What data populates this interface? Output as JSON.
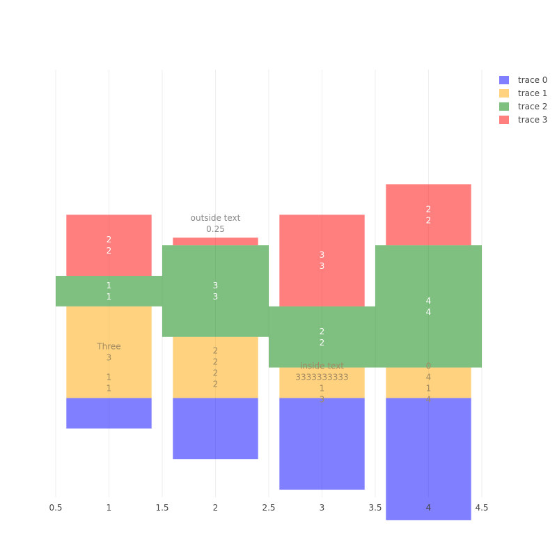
{
  "chart_data": {
    "type": "bar",
    "barmode": "relative",
    "x_ticks": [
      "0.5",
      "1",
      "1.5",
      "2",
      "2.5",
      "3",
      "3.5",
      "4",
      "4.5"
    ],
    "x_tick_values": [
      0.5,
      1,
      1.5,
      2,
      2.5,
      3,
      3.5,
      4,
      4.5
    ],
    "xlim": [
      0.5,
      4.5
    ],
    "ylim": [
      -3.25,
      10.75
    ],
    "grid": "vertical",
    "legend_position": "top-right",
    "series": [
      {
        "name": "trace 0",
        "color": "#0000ff",
        "width": 0.8,
        "x": [
          1,
          2,
          3,
          4
        ],
        "base": [
          -1,
          -2,
          -3,
          -4
        ],
        "values": [
          1,
          2,
          3,
          4
        ],
        "text": [
          "",
          "",
          "",
          ""
        ],
        "text_color": "#ffffff"
      },
      {
        "name": "trace 1",
        "color": "#ffa500",
        "width": 0.8,
        "x": [
          1,
          2,
          3,
          4
        ],
        "base": [
          0,
          0,
          0,
          0
        ],
        "values": [
          3,
          2,
          1,
          1
        ],
        "text": [
          [
            "Three",
            "3"
          ],
          [
            "2",
            "2",
            "2",
            "2"
          ],
          [
            "inside text",
            "3333333333",
            "1",
            "3"
          ],
          [
            "0",
            "4",
            "1",
            "4"
          ]
        ],
        "text_color": "#a08a60"
      },
      {
        "name": "trace 2",
        "color": "#008000",
        "width": 1.0,
        "x": [
          1,
          2,
          3,
          4
        ],
        "base": [
          3,
          2,
          1,
          1
        ],
        "values": [
          1,
          3,
          2,
          4
        ],
        "text": [
          [
            "1",
            "1"
          ],
          [
            "3",
            "3"
          ],
          [
            "2",
            "2"
          ],
          [
            "4",
            "4"
          ]
        ],
        "text_color": "#ffffff"
      },
      {
        "name": "trace 3",
        "color": "#ff0000",
        "width": 0.8,
        "x": [
          1,
          2,
          3,
          4
        ],
        "base": [
          4,
          5,
          3,
          5
        ],
        "values": [
          2,
          0.25,
          3,
          2
        ],
        "text": [
          [
            "2",
            "2"
          ],
          "",
          [
            "3",
            "3"
          ],
          [
            "2",
            "2"
          ]
        ],
        "text_color": "#ffffff"
      }
    ],
    "annotations": [
      {
        "x": 1,
        "y": 0.5,
        "lines": [
          "1",
          "1"
        ],
        "color": "#a08a60"
      },
      {
        "x": 2,
        "y": 5.25,
        "lines": [
          "outside text",
          "0.25"
        ],
        "color": "#888888",
        "position": "outside"
      }
    ]
  }
}
